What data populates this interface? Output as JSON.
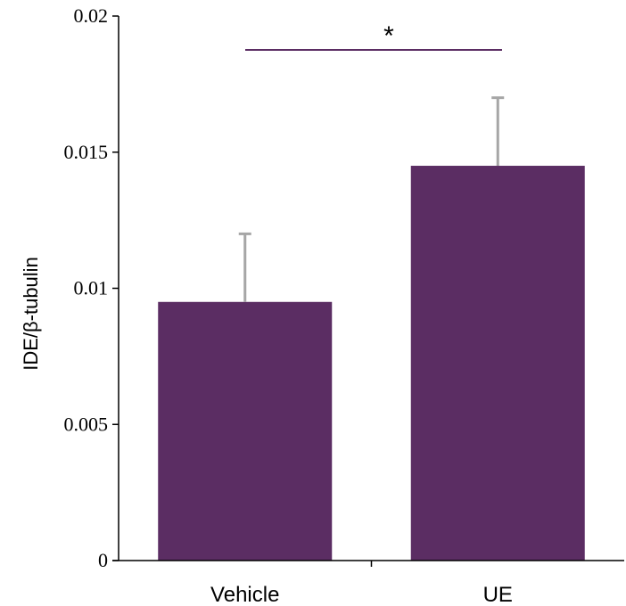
{
  "chart_data": {
    "type": "bar",
    "categories": [
      "Vehicle",
      "UE"
    ],
    "values": [
      0.0095,
      0.0145
    ],
    "error_upper": [
      0.0025,
      0.0025
    ],
    "ylabel": "IDE/β-tubulin",
    "ylim": [
      0,
      0.02
    ],
    "yticks": [
      0,
      0.005,
      0.01,
      0.015,
      0.02
    ],
    "ytick_labels": [
      "0",
      "0.005",
      "0.01",
      "0.015",
      "0.02"
    ],
    "grid": false,
    "legend": "none",
    "significance": {
      "between": [
        "Vehicle",
        "UE"
      ],
      "label": "*"
    },
    "colors": {
      "bar": "#5b2d63",
      "error_bar": "#a6a6a6",
      "axis": "#000000",
      "sig_line": "#5b2d63"
    }
  }
}
